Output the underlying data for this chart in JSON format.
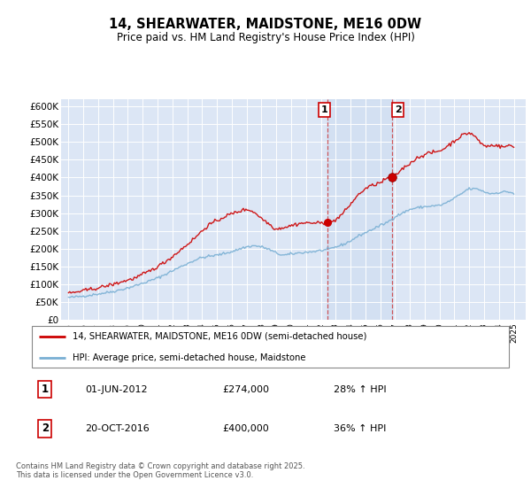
{
  "title": "14, SHEARWATER, MAIDSTONE, ME16 0DW",
  "subtitle": "Price paid vs. HM Land Registry's House Price Index (HPI)",
  "ylabel_ticks": [
    "£0",
    "£50K",
    "£100K",
    "£150K",
    "£200K",
    "£250K",
    "£300K",
    "£350K",
    "£400K",
    "£450K",
    "£500K",
    "£550K",
    "£600K"
  ],
  "ytick_values": [
    0,
    50000,
    100000,
    150000,
    200000,
    250000,
    300000,
    350000,
    400000,
    450000,
    500000,
    550000,
    600000
  ],
  "ylim": [
    0,
    620000
  ],
  "xlim_start": 1994.5,
  "xlim_end": 2025.8,
  "plot_bg_color": "#dce6f5",
  "grid_color": "#ffffff",
  "red_line_color": "#cc0000",
  "blue_line_color": "#7ab0d4",
  "marker1_x": 2012.42,
  "marker1_y": 274000,
  "marker2_x": 2016.8,
  "marker2_y": 400000,
  "vline1_x": 2012.42,
  "vline2_x": 2016.8,
  "annotation1_date": "01-JUN-2012",
  "annotation1_price": "£274,000",
  "annotation1_hpi": "28% ↑ HPI",
  "annotation2_date": "20-OCT-2016",
  "annotation2_price": "£400,000",
  "annotation2_hpi": "36% ↑ HPI",
  "legend1_label": "14, SHEARWATER, MAIDSTONE, ME16 0DW (semi-detached house)",
  "legend2_label": "HPI: Average price, semi-detached house, Maidstone",
  "footnote": "Contains HM Land Registry data © Crown copyright and database right 2025.\nThis data is licensed under the Open Government Licence v3.0.",
  "hpi_knots_x": [
    1995.0,
    1996.0,
    1997.0,
    1998.0,
    1999.0,
    2000.0,
    2001.0,
    2002.0,
    2003.0,
    2004.0,
    2005.0,
    2006.0,
    2007.0,
    2007.5,
    2008.0,
    2008.5,
    2009.0,
    2009.5,
    2010.0,
    2010.5,
    2011.0,
    2011.5,
    2012.0,
    2012.5,
    2013.0,
    2013.5,
    2014.0,
    2014.5,
    2015.0,
    2015.5,
    2016.0,
    2016.5,
    2017.0,
    2017.5,
    2018.0,
    2018.5,
    2019.0,
    2019.5,
    2020.0,
    2020.5,
    2021.0,
    2021.5,
    2022.0,
    2022.5,
    2023.0,
    2023.5,
    2024.0,
    2024.5,
    2025.0
  ],
  "hpi_knots_y": [
    63000,
    67000,
    73000,
    80000,
    90000,
    103000,
    118000,
    138000,
    158000,
    175000,
    182000,
    192000,
    205000,
    208000,
    205000,
    198000,
    188000,
    182000,
    185000,
    188000,
    190000,
    192000,
    195000,
    198000,
    205000,
    212000,
    222000,
    235000,
    245000,
    255000,
    265000,
    275000,
    290000,
    300000,
    310000,
    315000,
    318000,
    320000,
    322000,
    330000,
    342000,
    355000,
    368000,
    368000,
    360000,
    355000,
    358000,
    360000,
    355000
  ],
  "price_knots_x": [
    1995.0,
    1995.5,
    1996.0,
    1996.5,
    1997.0,
    1997.5,
    1998.0,
    1998.5,
    1999.0,
    1999.5,
    2000.0,
    2000.5,
    2001.0,
    2001.5,
    2002.0,
    2002.5,
    2003.0,
    2003.5,
    2004.0,
    2004.5,
    2005.0,
    2005.5,
    2006.0,
    2006.5,
    2007.0,
    2007.25,
    2007.5,
    2007.75,
    2008.0,
    2008.25,
    2008.5,
    2008.75,
    2009.0,
    2009.25,
    2009.5,
    2009.75,
    2010.0,
    2010.25,
    2010.5,
    2010.75,
    2011.0,
    2011.25,
    2011.5,
    2011.75,
    2012.0,
    2012.25,
    2012.42,
    2012.75,
    2013.0,
    2013.25,
    2013.5,
    2013.75,
    2014.0,
    2014.25,
    2014.5,
    2014.75,
    2015.0,
    2015.25,
    2015.5,
    2015.75,
    2016.0,
    2016.25,
    2016.5,
    2016.8,
    2017.0,
    2017.25,
    2017.5,
    2017.75,
    2018.0,
    2018.25,
    2018.5,
    2018.75,
    2019.0,
    2019.25,
    2019.5,
    2019.75,
    2020.0,
    2020.25,
    2020.5,
    2020.75,
    2021.0,
    2021.25,
    2021.5,
    2021.75,
    2022.0,
    2022.25,
    2022.5,
    2022.75,
    2023.0,
    2023.25,
    2023.5,
    2023.75,
    2024.0,
    2024.25,
    2024.5,
    2024.75,
    2025.0
  ],
  "price_knots_y": [
    75000,
    78000,
    82000,
    86000,
    90000,
    95000,
    100000,
    106000,
    112000,
    118000,
    128000,
    138000,
    150000,
    163000,
    178000,
    195000,
    212000,
    230000,
    250000,
    268000,
    278000,
    290000,
    298000,
    305000,
    310000,
    308000,
    302000,
    295000,
    285000,
    278000,
    270000,
    262000,
    255000,
    258000,
    260000,
    262000,
    265000,
    268000,
    270000,
    272000,
    272000,
    273000,
    272000,
    272000,
    272000,
    273000,
    274000,
    276000,
    282000,
    290000,
    300000,
    312000,
    325000,
    338000,
    350000,
    360000,
    368000,
    374000,
    378000,
    382000,
    385000,
    392000,
    398000,
    400000,
    405000,
    415000,
    425000,
    432000,
    440000,
    448000,
    455000,
    460000,
    465000,
    468000,
    470000,
    472000,
    475000,
    480000,
    488000,
    495000,
    503000,
    510000,
    518000,
    522000,
    525000,
    520000,
    510000,
    498000,
    490000,
    488000,
    490000,
    492000,
    488000,
    486000,
    488000,
    490000,
    485000
  ]
}
